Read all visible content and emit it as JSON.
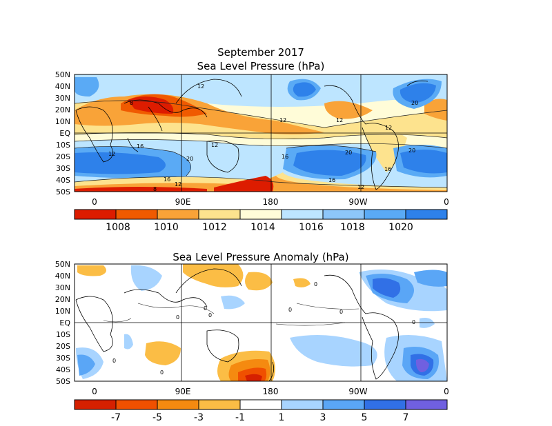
{
  "top_panel": {
    "title_line1": "September 2017",
    "title_line2": "Sea Level Pressure (hPa)",
    "lat_labels": [
      "50N",
      "40N",
      "30N",
      "20N",
      "10N",
      "EQ",
      "10S",
      "20S",
      "30S",
      "40S",
      "50S"
    ],
    "lon_labels": [
      "0",
      "90E",
      "180",
      "90W",
      "0"
    ],
    "contour_labels": [
      "12",
      "8",
      "12",
      "12",
      "12",
      "20",
      "12",
      "16",
      "12",
      "20",
      "16",
      "20",
      "16",
      "16",
      "12",
      "12",
      "8",
      "20",
      "16"
    ],
    "colorbar": {
      "colors": [
        "#dd1c00",
        "#f05a00",
        "#f9a338",
        "#fde38e",
        "#fffcd8",
        "#bde5ff",
        "#8dc6f9",
        "#5aaaf5",
        "#2e81ea"
      ],
      "labels": [
        "1008",
        "1010",
        "1012",
        "1014",
        "1016",
        "1018",
        "1020"
      ]
    }
  },
  "bottom_panel": {
    "title": "Sea Level Pressure Anomaly (hPa)",
    "lat_labels": [
      "50N",
      "40N",
      "30N",
      "20N",
      "10N",
      "EQ",
      "10S",
      "20S",
      "30S",
      "40S",
      "50S"
    ],
    "lon_labels": [
      "0",
      "90E",
      "180",
      "90W",
      "0"
    ],
    "contour_labels": [
      "0",
      "0",
      "0",
      "0",
      "0",
      "0",
      "0",
      "0",
      "0"
    ],
    "colorbar": {
      "colors": [
        "#d62000",
        "#f05000",
        "#f58a10",
        "#fbbd45",
        "#ffffff",
        "#a8d4ff",
        "#5aa6f6",
        "#3170e6",
        "#7060e0"
      ],
      "labels": [
        "-7",
        "-5",
        "-3",
        "-1",
        "1",
        "3",
        "5",
        "7"
      ]
    }
  }
}
